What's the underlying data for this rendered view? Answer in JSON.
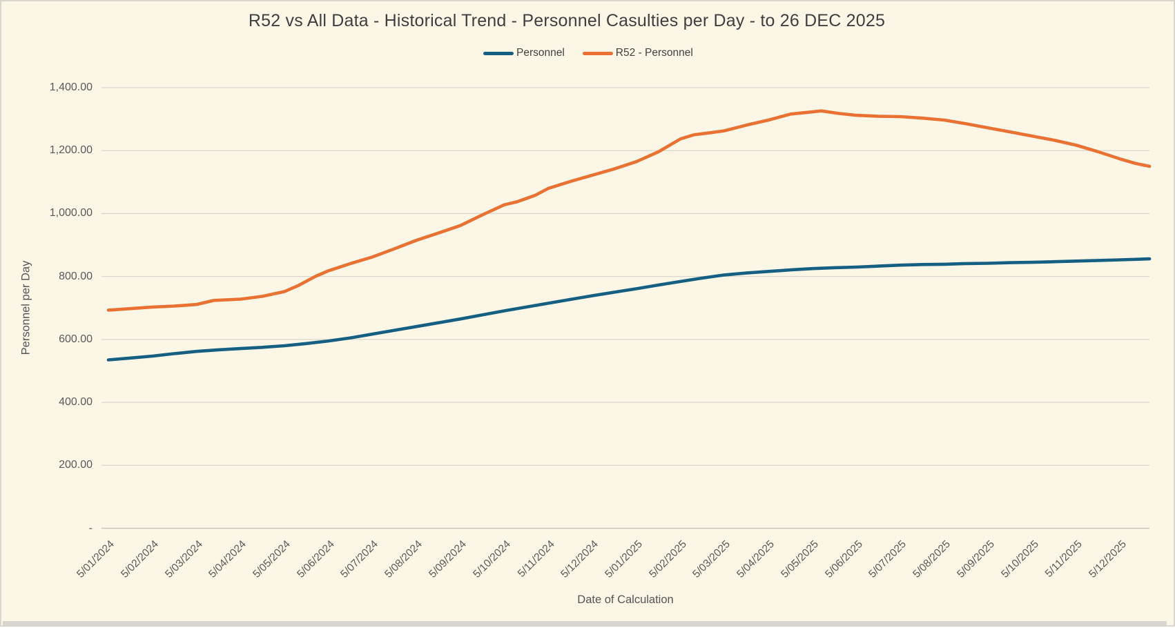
{
  "window": {
    "background_color": "#fcf6e7",
    "frame_border_color": "#d9d6cd",
    "gridline_color": "#d9d7cd",
    "axis_line_color": "#c7c5bb",
    "text_color_title": "#3f3f3f",
    "text_color_axis": "#595959"
  },
  "chart_data": {
    "type": "line",
    "title": "R52 vs All Data - Historical Trend - Personnel Casulties per Day - to 26 DEC 2025",
    "xlabel": "Date of Calculation",
    "ylabel": "Personnel per Day",
    "legend_position": "top",
    "grid": true,
    "ylim": [
      0,
      1400
    ],
    "y_step": 200,
    "y_tick_labels": [
      "1,400.00",
      "1,200.00",
      "1,000.00",
      "800.00",
      "600.00",
      "400.00",
      "200.00",
      "-"
    ],
    "categories": [
      "5/01/2024",
      "5/02/2024",
      "5/03/2024",
      "5/04/2024",
      "5/05/2024",
      "5/06/2024",
      "5/07/2024",
      "5/08/2024",
      "5/09/2024",
      "5/10/2024",
      "5/11/2024",
      "5/12/2024",
      "5/01/2025",
      "5/02/2025",
      "5/03/2025",
      "5/04/2025",
      "5/05/2025",
      "5/06/2025",
      "5/07/2025",
      "5/08/2025",
      "5/09/2025",
      "5/10/2025",
      "5/11/2025",
      "5/12/2025"
    ],
    "note": "lines extend past the last category tick to 26 DEC 2025",
    "series": [
      {
        "name": "Personnel",
        "color": "#156082",
        "values": [
          535,
          547,
          562,
          571,
          580,
          595,
          617,
          641,
          665,
          691,
          715,
          739,
          761,
          784,
          805,
          816,
          825,
          830,
          836,
          839,
          842,
          845,
          849,
          853
        ],
        "end_value_26_dec_2025": 856,
        "dense_points": [
          [
            0,
            535
          ],
          [
            0.5,
            541
          ],
          [
            1,
            547
          ],
          [
            1.5,
            555
          ],
          [
            2,
            562
          ],
          [
            2.5,
            567
          ],
          [
            3,
            571
          ],
          [
            3.5,
            575
          ],
          [
            4,
            580
          ],
          [
            4.5,
            587
          ],
          [
            5,
            595
          ],
          [
            5.5,
            605
          ],
          [
            6,
            617
          ],
          [
            6.5,
            629
          ],
          [
            7,
            641
          ],
          [
            7.5,
            653
          ],
          [
            8,
            665
          ],
          [
            8.5,
            678
          ],
          [
            9,
            691
          ],
          [
            9.5,
            703
          ],
          [
            10,
            715
          ],
          [
            10.5,
            727
          ],
          [
            11,
            739
          ],
          [
            11.5,
            750
          ],
          [
            12,
            761
          ],
          [
            12.5,
            773
          ],
          [
            13,
            784
          ],
          [
            13.5,
            795
          ],
          [
            14,
            805
          ],
          [
            14.5,
            811
          ],
          [
            15,
            816
          ],
          [
            15.5,
            821
          ],
          [
            16,
            825
          ],
          [
            16.5,
            828
          ],
          [
            17,
            830
          ],
          [
            17.5,
            833
          ],
          [
            18,
            836
          ],
          [
            18.5,
            838
          ],
          [
            19,
            839
          ],
          [
            19.5,
            841
          ],
          [
            20,
            842
          ],
          [
            20.5,
            844
          ],
          [
            21,
            845
          ],
          [
            21.5,
            847
          ],
          [
            22,
            849
          ],
          [
            22.5,
            851
          ],
          [
            23,
            853
          ],
          [
            23.66,
            856
          ]
        ]
      },
      {
        "name": "R52 - Personnel",
        "color": "#e97132",
        "values": [
          693,
          703,
          711,
          728,
          752,
          818,
          862,
          915,
          962,
          1028,
          1080,
          1122,
          1165,
          1237,
          1263,
          1297,
          1323,
          1312,
          1308,
          1297,
          1272,
          1246,
          1217,
          1173
        ],
        "end_value_26_dec_2025": 1150,
        "dense_points": [
          [
            0,
            693
          ],
          [
            0.5,
            698
          ],
          [
            1,
            703
          ],
          [
            1.5,
            706
          ],
          [
            2,
            711
          ],
          [
            2.4,
            724
          ],
          [
            3,
            728
          ],
          [
            3.5,
            737
          ],
          [
            4,
            752
          ],
          [
            4.3,
            770
          ],
          [
            4.7,
            800
          ],
          [
            5,
            818
          ],
          [
            5.5,
            841
          ],
          [
            6,
            862
          ],
          [
            6.5,
            888
          ],
          [
            7,
            915
          ],
          [
            7.5,
            938
          ],
          [
            8,
            962
          ],
          [
            8.5,
            996
          ],
          [
            9,
            1028
          ],
          [
            9.3,
            1038
          ],
          [
            9.7,
            1058
          ],
          [
            10,
            1080
          ],
          [
            10.5,
            1102
          ],
          [
            11,
            1122
          ],
          [
            11.5,
            1142
          ],
          [
            12,
            1165
          ],
          [
            12.5,
            1196
          ],
          [
            13,
            1237
          ],
          [
            13.3,
            1250
          ],
          [
            13.7,
            1257
          ],
          [
            14,
            1263
          ],
          [
            14.5,
            1281
          ],
          [
            15,
            1297
          ],
          [
            15.5,
            1316
          ],
          [
            16,
            1323
          ],
          [
            16.2,
            1326
          ],
          [
            16.6,
            1318
          ],
          [
            17,
            1312
          ],
          [
            17.5,
            1309
          ],
          [
            18,
            1308
          ],
          [
            18.5,
            1303
          ],
          [
            19,
            1297
          ],
          [
            19.5,
            1285
          ],
          [
            20,
            1272
          ],
          [
            20.5,
            1259
          ],
          [
            21,
            1246
          ],
          [
            21.5,
            1233
          ],
          [
            22,
            1217
          ],
          [
            22.5,
            1196
          ],
          [
            23,
            1173
          ],
          [
            23.35,
            1159
          ],
          [
            23.66,
            1150
          ]
        ]
      }
    ]
  }
}
